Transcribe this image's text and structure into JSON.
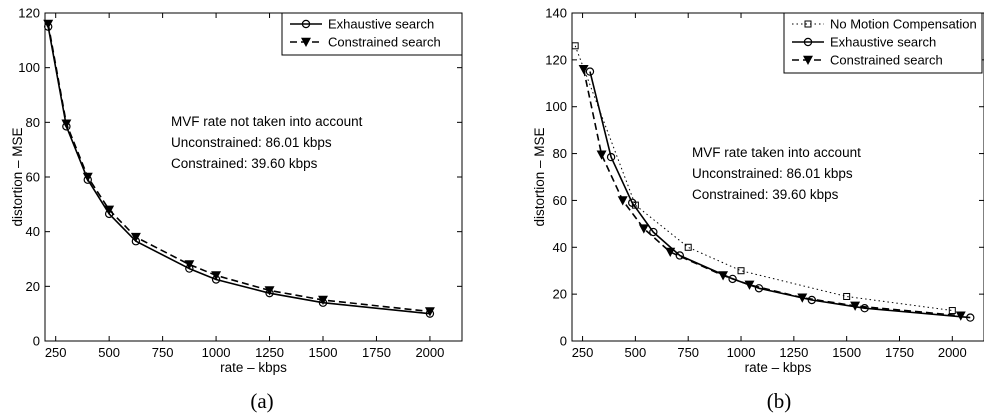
{
  "chart_data": [
    {
      "type": "line",
      "caption": "(a)",
      "xlabel": "rate – kbps",
      "ylabel": "distortion – MSE",
      "xlim": [
        200,
        2150
      ],
      "ylim": [
        0,
        120
      ],
      "xticks": [
        250,
        500,
        750,
        1000,
        1250,
        1500,
        1750,
        2000
      ],
      "yticks": [
        0,
        20,
        40,
        60,
        80,
        100,
        120
      ],
      "grid": false,
      "legend_position": "top-right",
      "annotations": [
        "MVF rate not taken into account",
        "Unconstrained: 86.01 kbps",
        "Constrained: 39.60 kbps"
      ],
      "series": [
        {
          "name": "Exhaustive search",
          "marker": "circle",
          "dash": "solid",
          "x": [
            215,
            300,
            400,
            500,
            625,
            875,
            1000,
            1250,
            1500,
            2000
          ],
          "y": [
            115,
            78.5,
            59,
            46.5,
            36.5,
            26.5,
            22.5,
            17.5,
            14,
            10
          ]
        },
        {
          "name": "Constrained search",
          "marker": "triangle-down",
          "dash": "dashed",
          "x": [
            215,
            300,
            400,
            500,
            625,
            875,
            1000,
            1250,
            1500,
            2000
          ],
          "y": [
            116,
            79.5,
            60,
            48,
            38,
            28,
            24,
            18.5,
            15,
            10.8
          ]
        }
      ]
    },
    {
      "type": "line",
      "caption": "(b)",
      "xlabel": "rate – kbps",
      "ylabel": "distortion – MSE",
      "xlim": [
        200,
        2150
      ],
      "ylim": [
        0,
        140
      ],
      "xticks": [
        250,
        500,
        750,
        1000,
        1250,
        1500,
        1750,
        2000
      ],
      "yticks": [
        0,
        20,
        40,
        60,
        80,
        100,
        120,
        140
      ],
      "grid": false,
      "legend_position": "top-right",
      "annotations": [
        "MVF rate taken into account",
        "Unconstrained: 86.01 kbps",
        "Constrained: 39.60 kbps"
      ],
      "series": [
        {
          "name": "No Motion Compensation",
          "marker": "square",
          "dash": "dotted",
          "x": [
            215,
            500,
            750,
            1000,
            1500,
            2000
          ],
          "y": [
            126,
            58,
            40,
            30,
            19,
            13
          ]
        },
        {
          "name": "Exhaustive search",
          "marker": "circle",
          "dash": "solid",
          "x": [
            285,
            385,
            485,
            585,
            710,
            960,
            1085,
            1335,
            1585,
            2085
          ],
          "y": [
            115,
            78.5,
            59,
            46.5,
            36.5,
            26.5,
            22.5,
            17.5,
            14,
            10
          ]
        },
        {
          "name": "Constrained search",
          "marker": "triangle-down",
          "dash": "dashed",
          "x": [
            255,
            340,
            440,
            540,
            665,
            915,
            1040,
            1290,
            1540,
            2040
          ],
          "y": [
            116,
            79.5,
            60,
            48,
            38,
            28,
            24,
            18.5,
            15,
            10.8
          ]
        }
      ]
    }
  ]
}
